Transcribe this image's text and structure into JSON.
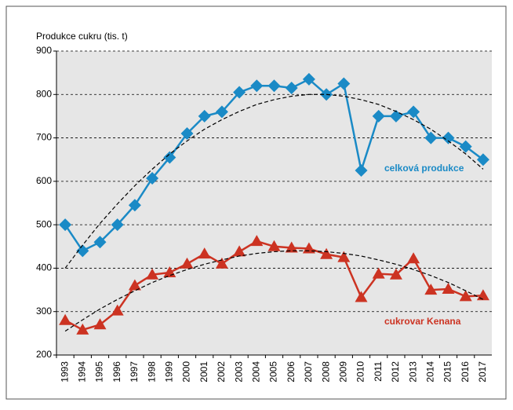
{
  "chart_data": {
    "type": "line",
    "y_label": "Produkce cukru (tis. t)",
    "categories": [
      "1993",
      "1994",
      "1995",
      "1996",
      "1997",
      "1998",
      "1999",
      "2000",
      "2001",
      "2002",
      "2003",
      "2004",
      "2005",
      "2006",
      "2007",
      "2008",
      "2009",
      "2010",
      "2011",
      "2012",
      "2013",
      "2014",
      "2015",
      "2016",
      "2017"
    ],
    "series": [
      {
        "name": "celková produkce",
        "color": "#1a8ac6",
        "marker": "diamond",
        "values": [
          500,
          440,
          460,
          500,
          545,
          607,
          655,
          710,
          750,
          760,
          805,
          820,
          820,
          815,
          835,
          800,
          825,
          625,
          750,
          750,
          760,
          700,
          700,
          680,
          650
        ],
        "trend_values": [
          400,
          453,
          503,
          548,
          590,
          628,
          663,
          693,
          720,
          742,
          761,
          777,
          788,
          796,
          800,
          800,
          796,
          788,
          777,
          761,
          742,
          720,
          693,
          663,
          628
        ]
      },
      {
        "name": "cukrovar Kenana",
        "color": "#cc3322",
        "marker": "triangle",
        "values": [
          280,
          258,
          270,
          302,
          360,
          385,
          390,
          410,
          433,
          410,
          438,
          462,
          450,
          447,
          445,
          432,
          425,
          333,
          387,
          385,
          422,
          350,
          352,
          335,
          337
        ],
        "trend_values": [
          255,
          281,
          306,
          328,
          348,
          367,
          383,
          397,
          409,
          419,
          428,
          434,
          438,
          440,
          440,
          438,
          434,
          428,
          419,
          409,
          397,
          383,
          367,
          348,
          328
        ]
      }
    ],
    "ylim": [
      200,
      900
    ],
    "yticks": [
      200,
      300,
      400,
      500,
      600,
      700,
      800,
      900
    ],
    "grid": true
  }
}
